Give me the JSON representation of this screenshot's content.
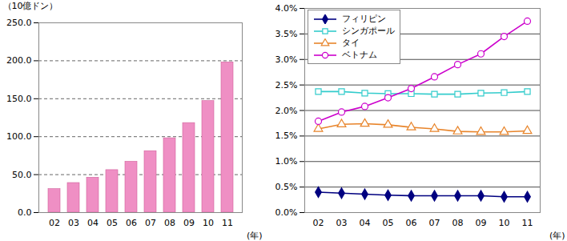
{
  "chart_data": [
    {
      "type": "bar",
      "y_label": "（10億ドン）",
      "x_label": "(年)",
      "categories": [
        "02",
        "03",
        "04",
        "05",
        "06",
        "07",
        "08",
        "09",
        "10",
        "11"
      ],
      "values": [
        31,
        39,
        46,
        56,
        67,
        81,
        98,
        118,
        147,
        198
      ],
      "color": "#ef8fc4",
      "ylim": [
        0,
        250
      ],
      "yticks": [
        {
          "value": 0,
          "label": "0.0"
        },
        {
          "value": 50,
          "label": "50.0"
        },
        {
          "value": 100,
          "label": "100.0"
        },
        {
          "value": 150,
          "label": "150.0"
        },
        {
          "value": 200,
          "label": "200.0"
        },
        {
          "value": 250,
          "label": "250.0"
        }
      ],
      "grid": true
    },
    {
      "type": "line",
      "x_label": "(年)",
      "categories": [
        "02",
        "03",
        "04",
        "05",
        "06",
        "07",
        "08",
        "09",
        "10",
        "11"
      ],
      "series": [
        {
          "name": "フィリピン",
          "color": "#000080",
          "marker": "diamond",
          "values": [
            0.4,
            0.38,
            0.36,
            0.34,
            0.33,
            0.33,
            0.33,
            0.33,
            0.31,
            0.31
          ]
        },
        {
          "name": "シンガポール",
          "color": "#33cccc",
          "marker": "square-open",
          "values": [
            2.37,
            2.37,
            2.34,
            2.33,
            2.33,
            2.32,
            2.32,
            2.34,
            2.35,
            2.37
          ]
        },
        {
          "name": "タイ",
          "color": "#e8842a",
          "marker": "triangle-open",
          "values": [
            1.64,
            1.73,
            1.74,
            1.72,
            1.67,
            1.64,
            1.59,
            1.58,
            1.58,
            1.6
          ]
        },
        {
          "name": "ベトナム",
          "color": "#cc00cc",
          "marker": "circle-open",
          "values": [
            1.79,
            1.97,
            2.08,
            2.25,
            2.43,
            2.66,
            2.9,
            3.11,
            3.45,
            3.75
          ]
        }
      ],
      "ylim": [
        0,
        4
      ],
      "yticks": [
        {
          "value": 0,
          "label": "0.0%"
        },
        {
          "value": 0.5,
          "label": "0.5%"
        },
        {
          "value": 1,
          "label": "1.0%"
        },
        {
          "value": 1.5,
          "label": "1.5%"
        },
        {
          "value": 2,
          "label": "2.0%"
        },
        {
          "value": 2.5,
          "label": "2.5%"
        },
        {
          "value": 3,
          "label": "3.0%"
        },
        {
          "value": 3.5,
          "label": "3.5%"
        },
        {
          "value": 4,
          "label": "4.0%"
        }
      ],
      "grid": true,
      "legend": "upper left"
    }
  ]
}
